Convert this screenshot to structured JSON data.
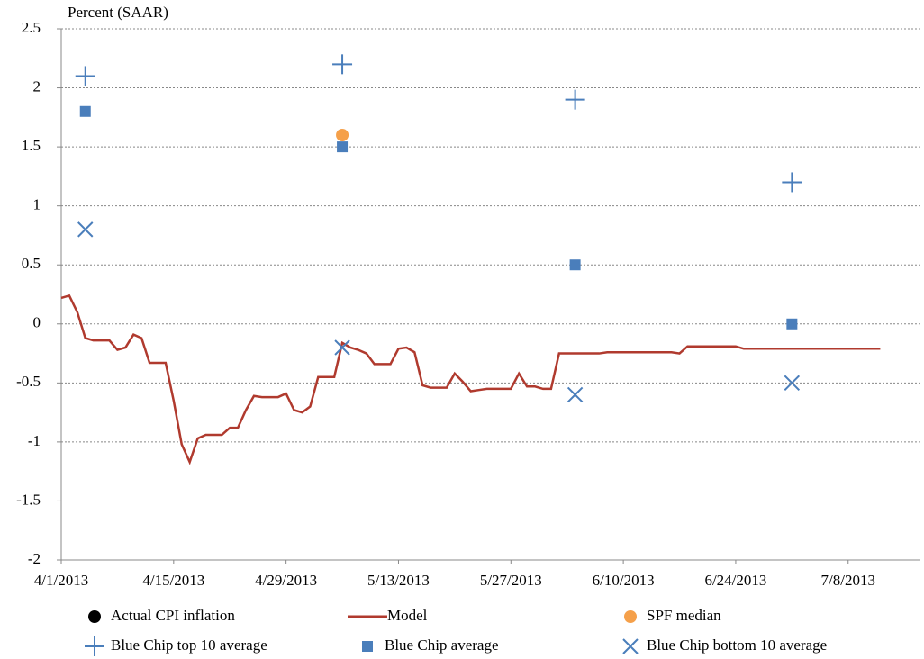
{
  "chart_data": {
    "type": "scatter",
    "y_axis_label": "Percent (SAAR)",
    "xlim": [
      "2013-04-01",
      "2013-07-17"
    ],
    "xticks": [
      {
        "value": "2013-04-01",
        "label": "4/1/2013"
      },
      {
        "value": "2013-04-15",
        "label": "4/15/2013"
      },
      {
        "value": "2013-04-29",
        "label": "4/29/2013"
      },
      {
        "value": "2013-05-13",
        "label": "5/13/2013"
      },
      {
        "value": "2013-05-27",
        "label": "5/27/2013"
      },
      {
        "value": "2013-06-10",
        "label": "6/10/2013"
      },
      {
        "value": "2013-06-24",
        "label": "6/24/2013"
      },
      {
        "value": "2013-07-08",
        "label": "7/8/2013"
      }
    ],
    "ylim": [
      -2,
      2.5
    ],
    "yticks": [
      -2,
      -1.5,
      -1,
      -0.5,
      0,
      0.5,
      1,
      1.5,
      2,
      2.5
    ],
    "grid": true,
    "series": [
      {
        "name": "Actual CPI inflation",
        "color": "#000000",
        "marker": "circle",
        "x": [],
        "values": []
      },
      {
        "name": "Model",
        "color": "#b03a2e",
        "marker": "line",
        "x": [
          "2013-04-01",
          "2013-04-02",
          "2013-04-03",
          "2013-04-04",
          "2013-04-05",
          "2013-04-06",
          "2013-04-07",
          "2013-04-08",
          "2013-04-09",
          "2013-04-10",
          "2013-04-11",
          "2013-04-12",
          "2013-04-13",
          "2013-04-14",
          "2013-04-15",
          "2013-04-16",
          "2013-04-17",
          "2013-04-18",
          "2013-04-19",
          "2013-04-20",
          "2013-04-21",
          "2013-04-22",
          "2013-04-23",
          "2013-04-24",
          "2013-04-25",
          "2013-04-26",
          "2013-04-27",
          "2013-04-28",
          "2013-04-29",
          "2013-04-30",
          "2013-05-01",
          "2013-05-02",
          "2013-05-03",
          "2013-05-04",
          "2013-05-05",
          "2013-05-06",
          "2013-05-07",
          "2013-05-08",
          "2013-05-09",
          "2013-05-10",
          "2013-05-11",
          "2013-05-12",
          "2013-05-13",
          "2013-05-14",
          "2013-05-15",
          "2013-05-16",
          "2013-05-17",
          "2013-05-18",
          "2013-05-19",
          "2013-05-20",
          "2013-05-21",
          "2013-05-22",
          "2013-05-23",
          "2013-05-24",
          "2013-05-25",
          "2013-05-26",
          "2013-05-27",
          "2013-05-28",
          "2013-05-29",
          "2013-05-30",
          "2013-05-31",
          "2013-06-01",
          "2013-06-02",
          "2013-06-03",
          "2013-06-04",
          "2013-06-05",
          "2013-06-06",
          "2013-06-07",
          "2013-06-08",
          "2013-06-10",
          "2013-06-13",
          "2013-06-16",
          "2013-06-17",
          "2013-06-18",
          "2013-06-24",
          "2013-06-25",
          "2013-07-07",
          "2013-07-12"
        ],
        "values": [
          0.22,
          0.24,
          0.1,
          -0.12,
          -0.14,
          -0.14,
          -0.14,
          -0.22,
          -0.2,
          -0.09,
          -0.12,
          -0.33,
          -0.33,
          -0.33,
          -0.65,
          -1.02,
          -1.17,
          -0.97,
          -0.94,
          -0.94,
          -0.94,
          -0.88,
          -0.88,
          -0.73,
          -0.61,
          -0.62,
          -0.62,
          -0.62,
          -0.59,
          -0.73,
          -0.75,
          -0.7,
          -0.45,
          -0.45,
          -0.45,
          -0.16,
          -0.2,
          -0.22,
          -0.25,
          -0.34,
          -0.34,
          -0.34,
          -0.21,
          -0.2,
          -0.24,
          -0.52,
          -0.54,
          -0.54,
          -0.54,
          -0.42,
          -0.49,
          -0.57,
          -0.56,
          -0.55,
          -0.55,
          -0.55,
          -0.55,
          -0.42,
          -0.53,
          -0.53,
          -0.55,
          -0.55,
          -0.25,
          -0.25,
          -0.25,
          -0.25,
          -0.25,
          -0.25,
          -0.24,
          -0.24,
          -0.24,
          -0.24,
          -0.25,
          -0.19,
          -0.19,
          -0.21,
          -0.21,
          -0.21
        ]
      },
      {
        "name": "SPF median",
        "color": "#f5a04a",
        "marker": "circle",
        "x": [
          "2013-05-06"
        ],
        "values": [
          1.6
        ]
      },
      {
        "name": "Blue Chip top 10 average",
        "color": "#4a7ebb",
        "marker": "plus",
        "x": [
          "2013-04-04",
          "2013-05-06",
          "2013-06-04",
          "2013-07-01"
        ],
        "values": [
          2.1,
          2.2,
          1.9,
          1.2
        ]
      },
      {
        "name": "Blue Chip average",
        "color": "#4a7ebb",
        "marker": "square",
        "x": [
          "2013-04-04",
          "2013-05-06",
          "2013-06-04",
          "2013-07-01"
        ],
        "values": [
          1.8,
          1.5,
          0.5,
          0.0
        ]
      },
      {
        "name": "Blue Chip bottom 10 average",
        "color": "#4a7ebb",
        "marker": "cross",
        "x": [
          "2013-04-04",
          "2013-05-06",
          "2013-06-04",
          "2013-07-01"
        ],
        "values": [
          0.8,
          -0.2,
          -0.6,
          -0.5
        ]
      }
    ]
  }
}
